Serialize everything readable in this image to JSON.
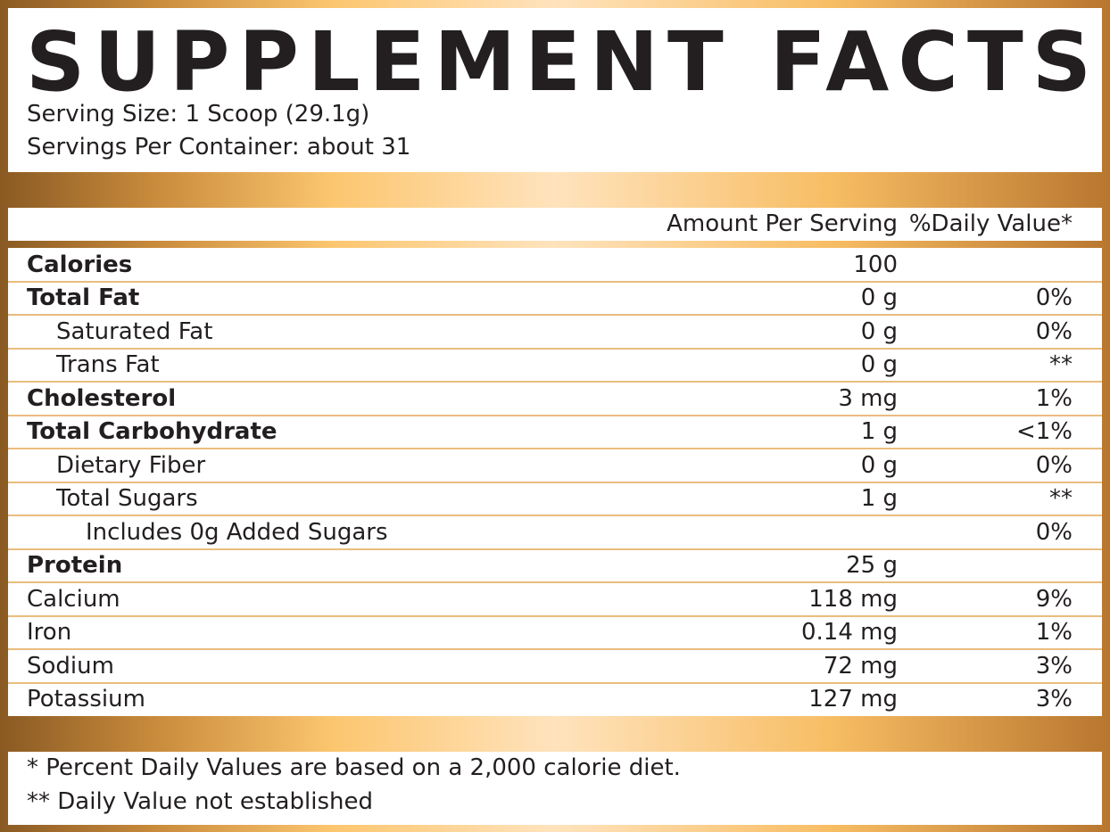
{
  "title": "SUPPLEMENT FACTS",
  "serving_size": "Serving Size: 1 Scoop (29.1g)",
  "servings_per_container": "Servings Per Container: about 31",
  "table": {
    "header": {
      "amount": "Amount Per Serving",
      "dv": "%Daily Value*"
    },
    "rows": [
      {
        "name": "Calories",
        "amount": "100",
        "bold": true,
        "indent": 0
      },
      {
        "name": "Total Fat",
        "amount": "0 g",
        "dv": "0%",
        "bold": true,
        "indent": 0
      },
      {
        "name": "Saturated Fat",
        "amount": "0 g",
        "dv": "0%",
        "bold": false,
        "indent": 1
      },
      {
        "name": "Trans Fat",
        "amount": "0 g",
        "dv": "**",
        "bold": false,
        "indent": 1
      },
      {
        "name": "Cholesterol",
        "amount": "3 mg",
        "dv": "1%",
        "bold": true,
        "indent": 0
      },
      {
        "name": "Total Carbohydrate",
        "amount": "1 g",
        "dv": "<1%",
        "bold": true,
        "indent": 0
      },
      {
        "name": "Dietary Fiber",
        "amount": "0 g",
        "dv": "0%",
        "bold": false,
        "indent": 1
      },
      {
        "name": "Total Sugars",
        "amount": "1 g",
        "dv": "**",
        "bold": false,
        "indent": 1
      },
      {
        "name": "Includes 0g Added Sugars",
        "dv": "0%",
        "bold": false,
        "indent": 2
      },
      {
        "name": "Protein",
        "amount": "25 g",
        "bold": true,
        "indent": 0
      },
      {
        "name": "Calcium",
        "amount": "118 mg",
        "dv": "9%",
        "bold": false,
        "indent": 0
      },
      {
        "name": "Iron",
        "amount": "0.14 mg",
        "dv": "1%",
        "bold": false,
        "indent": 0
      },
      {
        "name": "Sodium",
        "amount": "72 mg",
        "dv": "3%",
        "bold": false,
        "indent": 0
      },
      {
        "name": "Potassium",
        "amount": "127 mg",
        "dv": "3%",
        "bold": false,
        "indent": 0
      }
    ]
  },
  "footnotes": [
    "* Percent Daily Values are based on a 2,000 calorie diet.",
    "** Daily Value not established"
  ]
}
